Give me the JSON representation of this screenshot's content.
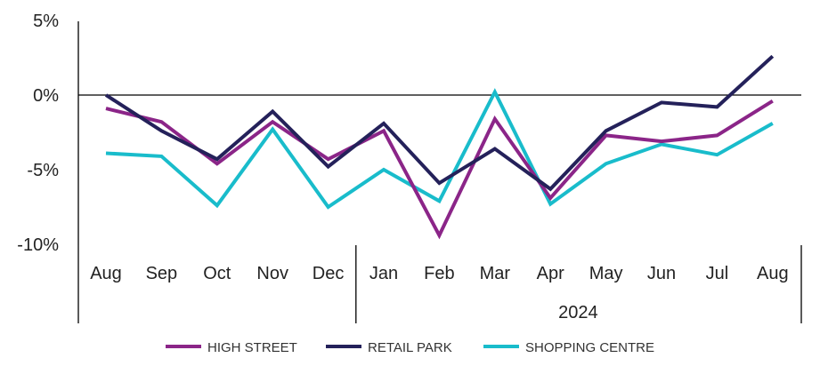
{
  "chart_data": {
    "type": "line",
    "categories": [
      "Aug",
      "Sep",
      "Oct",
      "Nov",
      "Dec",
      "Jan",
      "Feb",
      "Mar",
      "Apr",
      "May",
      "Jun",
      "Jul",
      "Aug"
    ],
    "year_group_label": "2024",
    "ylim": [
      -10,
      5
    ],
    "yticks": [
      5,
      0,
      -5,
      -10
    ],
    "ytick_labels": [
      "5%",
      "0%",
      "-5%",
      "-10%"
    ],
    "grid": false,
    "legend_position": "bottom",
    "series": [
      {
        "name": "HIGH STREET",
        "color": "#8b2588",
        "values": [
          -0.9,
          -1.8,
          -4.6,
          -1.8,
          -4.3,
          -2.4,
          -9.4,
          -1.6,
          -6.9,
          -2.7,
          -3.1,
          -2.7,
          -0.4
        ]
      },
      {
        "name": "RETAIL PARK",
        "color": "#24215a",
        "values": [
          0.0,
          -2.4,
          -4.3,
          -1.1,
          -4.8,
          -1.9,
          -5.9,
          -3.6,
          -6.3,
          -2.4,
          -0.5,
          -0.8,
          2.6
        ]
      },
      {
        "name": "SHOPPING CENTRE",
        "color": "#19bccb",
        "values": [
          -3.9,
          -4.1,
          -7.4,
          -2.3,
          -7.5,
          -5.0,
          -7.1,
          0.2,
          -7.3,
          -4.6,
          -3.3,
          -4.0,
          -1.9
        ]
      }
    ]
  }
}
